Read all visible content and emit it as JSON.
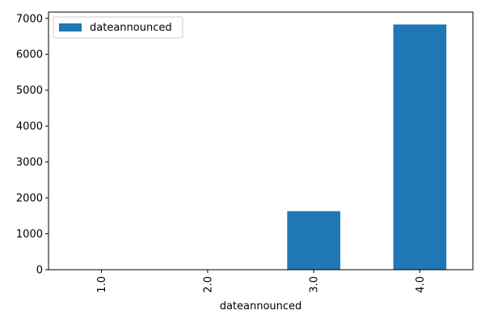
{
  "chart_data": {
    "type": "bar",
    "title": "",
    "xlabel": "dateannounced",
    "ylabel": "",
    "categories": [
      "1.0",
      "2.0",
      "3.0",
      "4.0"
    ],
    "series": [
      {
        "name": "dateannounced",
        "color": "#1f77b4",
        "values": [
          0,
          0,
          1630,
          6830
        ]
      }
    ],
    "ylim": [
      0,
      7175
    ],
    "yticks": [
      0,
      1000,
      2000,
      3000,
      4000,
      5000,
      6000,
      7000
    ],
    "legend_position": "top-left",
    "grid": false,
    "x_tick_rotation": "vertical"
  }
}
